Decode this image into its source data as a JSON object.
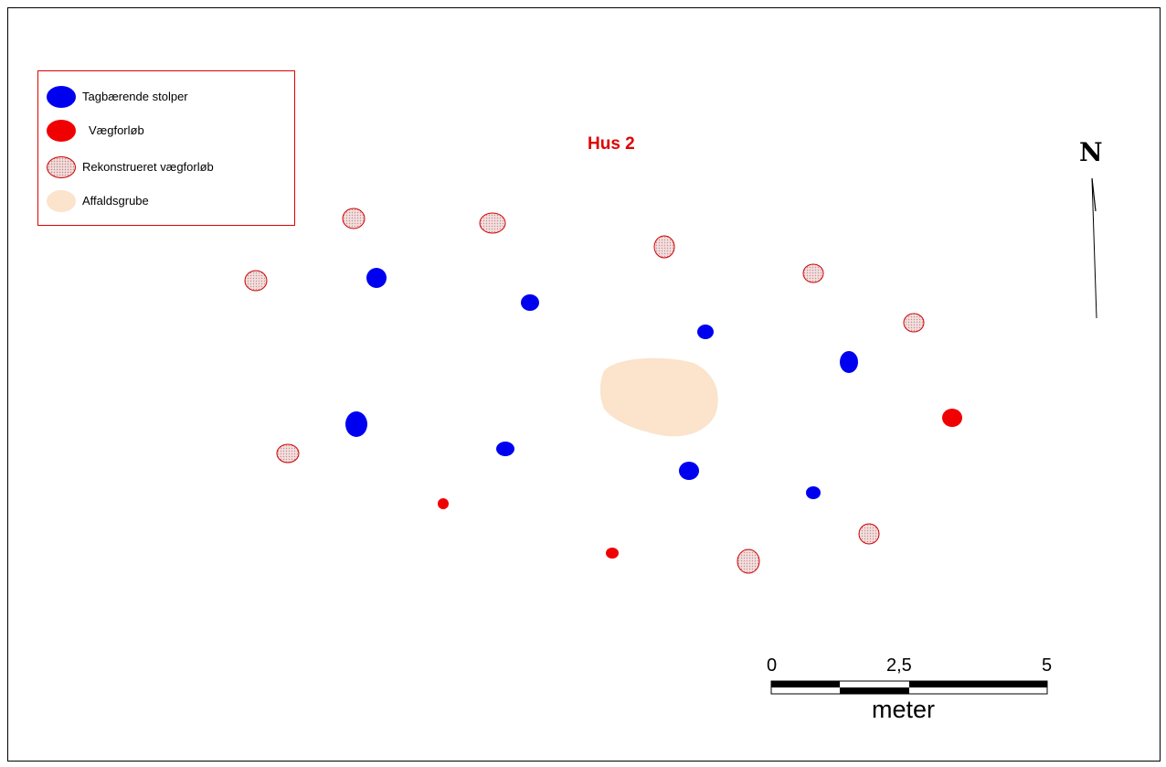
{
  "map": {
    "title": "Hus 2",
    "north_label": "N",
    "legend": {
      "items": [
        {
          "key": "roof",
          "label": "Tagbærende stolper",
          "color": "#0000f0"
        },
        {
          "key": "wall",
          "label": "Vægforløb",
          "color": "#f00000"
        },
        {
          "key": "recon",
          "label": "Rekonstrueret vægforløb",
          "color": "#d00000"
        },
        {
          "key": "pit",
          "label": "Affaldsgrube",
          "color": "#fbe3cc"
        }
      ]
    },
    "scale_bar": {
      "ticks": [
        "0",
        "2,5",
        "5"
      ],
      "unit": "meter"
    }
  }
}
